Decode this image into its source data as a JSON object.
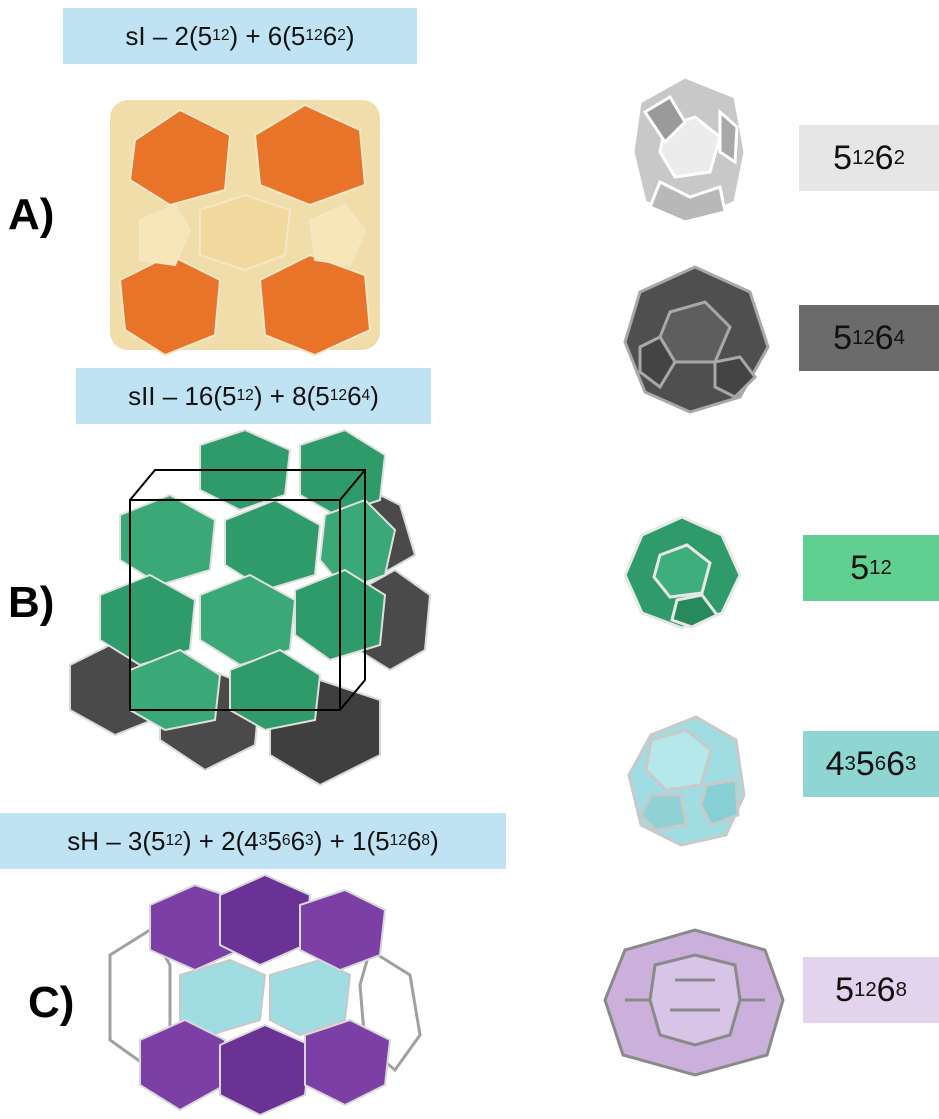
{
  "panels": [
    {
      "letter": "A)",
      "formula": {
        "prefix": "sI – 2(5",
        "e1": "12",
        "mid": ") + 6(5",
        "e2": "12",
        "m2": "6",
        "e3": "2",
        "suffix": ")"
      }
    },
    {
      "letter": "B)",
      "formula": {
        "prefix": "sII – 16(5",
        "e1": "12",
        "mid": ") + 8(5",
        "e2": "12",
        "m2": "6",
        "e3": "4",
        "suffix": ")"
      }
    },
    {
      "letter": "C)",
      "formula": {
        "prefix": "sH – 3(5",
        "e1": "12",
        "mid": ") + 2(4",
        "e2": "3",
        "m2": "5",
        "e3": "6",
        "m3": "6",
        "e4": "3",
        "m4": ") + 1(5",
        "e5": "12",
        "m5": "6",
        "e6": "8",
        "suffix": ")"
      }
    }
  ],
  "cages": [
    {
      "base": "5",
      "e1": "12",
      "mid": "6",
      "e2": "2",
      "color": "#e6e6e6",
      "text_color": "#111"
    },
    {
      "base": "5",
      "e1": "12",
      "mid": "6",
      "e2": "4",
      "color": "#6b6b6b",
      "text_color": "#111"
    },
    {
      "base": "5",
      "e1": "12",
      "mid": "",
      "e2": "",
      "color": "#5fd08f",
      "text_color": "#111"
    },
    {
      "base": "4",
      "e1": "3",
      "mid": "5",
      "e2": "6",
      "mid2": "6",
      "e3": "3",
      "color": "#8fd5d2",
      "text_color": "#111"
    },
    {
      "base": "5",
      "e1": "12",
      "mid": "6",
      "e2": "8",
      "color": "#e3d3ec",
      "text_color": "#111"
    }
  ],
  "colors": {
    "formula_bg": "#bfe3f3",
    "sI_orange": "#e8742a",
    "sI_yellow": "#e9cf86",
    "sII_green": "#2f9a6a",
    "dark_gray": "#4a4a4a",
    "cyan": "#9fdde2",
    "purple": "#7b3fa6",
    "light_purple": "#cbb0dc"
  }
}
